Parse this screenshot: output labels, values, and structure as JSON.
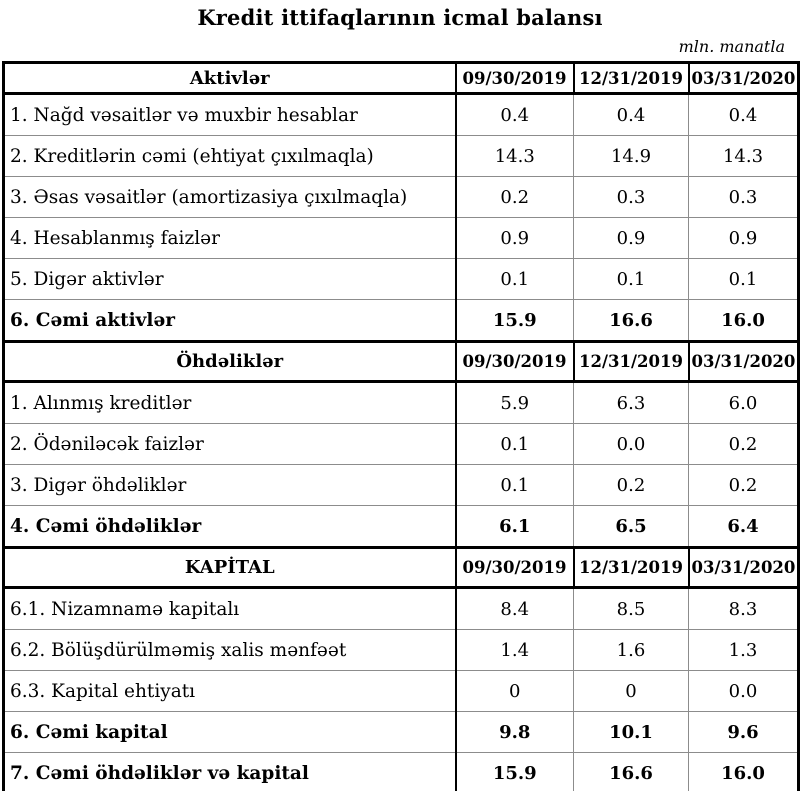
{
  "page": {
    "title": "Kredit ittifaqlarının icmal balansı",
    "unit_note": "mln. manatla"
  },
  "table": {
    "date_columns": [
      "09/30/2019",
      "12/31/2019",
      "03/31/2020"
    ],
    "sections": [
      {
        "header": "Aktivlər",
        "rows": [
          {
            "label": "1. Nağd vəsaitlər və muxbir hesablar",
            "values": [
              "0.4",
              "0.4",
              "0.4"
            ],
            "bold": false
          },
          {
            "label": "2. Kreditlərin cəmi (ehtiyat çıxılmaqla)",
            "values": [
              "14.3",
              "14.9",
              "14.3"
            ],
            "bold": false
          },
          {
            "label": "3. Əsas vəsaitlər (amortizasiya çıxılmaqla)",
            "values": [
              "0.2",
              "0.3",
              "0.3"
            ],
            "bold": false
          },
          {
            "label": "4. Hesablanmış faizlər",
            "values": [
              "0.9",
              "0.9",
              "0.9"
            ],
            "bold": false
          },
          {
            "label": "5. Digər aktivlər",
            "values": [
              "0.1",
              "0.1",
              "0.1"
            ],
            "bold": false
          },
          {
            "label": "6. Cəmi aktivlər",
            "values": [
              "15.9",
              "16.6",
              "16.0"
            ],
            "bold": true
          }
        ]
      },
      {
        "header": "Öhdəliklər",
        "rows": [
          {
            "label": "1. Alınmış kreditlər",
            "values": [
              "5.9",
              "6.3",
              "6.0"
            ],
            "bold": false
          },
          {
            "label": "2. Ödəniləcək faizlər",
            "values": [
              "0.1",
              "0.0",
              "0.2"
            ],
            "bold": false
          },
          {
            "label": "3. Digər öhdəliklər",
            "values": [
              "0.1",
              "0.2",
              "0.2"
            ],
            "bold": false
          },
          {
            "label": "4. Cəmi öhdəliklər",
            "values": [
              "6.1",
              "6.5",
              "6.4"
            ],
            "bold": true
          }
        ]
      },
      {
        "header": "KAPİTAL",
        "rows": [
          {
            "label": "6.1. Nizamnamə kapitalı",
            "values": [
              "8.4",
              "8.5",
              "8.3"
            ],
            "bold": false
          },
          {
            "label": "6.2. Bölüşdürülməmiş xalis mənfəət",
            "values": [
              "1.4",
              "1.6",
              "1.3"
            ],
            "bold": false
          },
          {
            "label": "6.3. Kapital ehtiyatı",
            "values": [
              "0",
              "0",
              "0.0"
            ],
            "bold": false
          },
          {
            "label": "6. Cəmi kapital",
            "values": [
              "9.8",
              "10.1",
              "9.6"
            ],
            "bold": true
          },
          {
            "label": "7. Cəmi öhdəliklər və kapital",
            "values": [
              "15.9",
              "16.6",
              "16.0"
            ],
            "bold": true
          }
        ]
      }
    ],
    "colors": {
      "heavy_line": "#000000",
      "grid_line": "#8c8c8c",
      "text": "#000000",
      "background": "#ffffff"
    }
  }
}
